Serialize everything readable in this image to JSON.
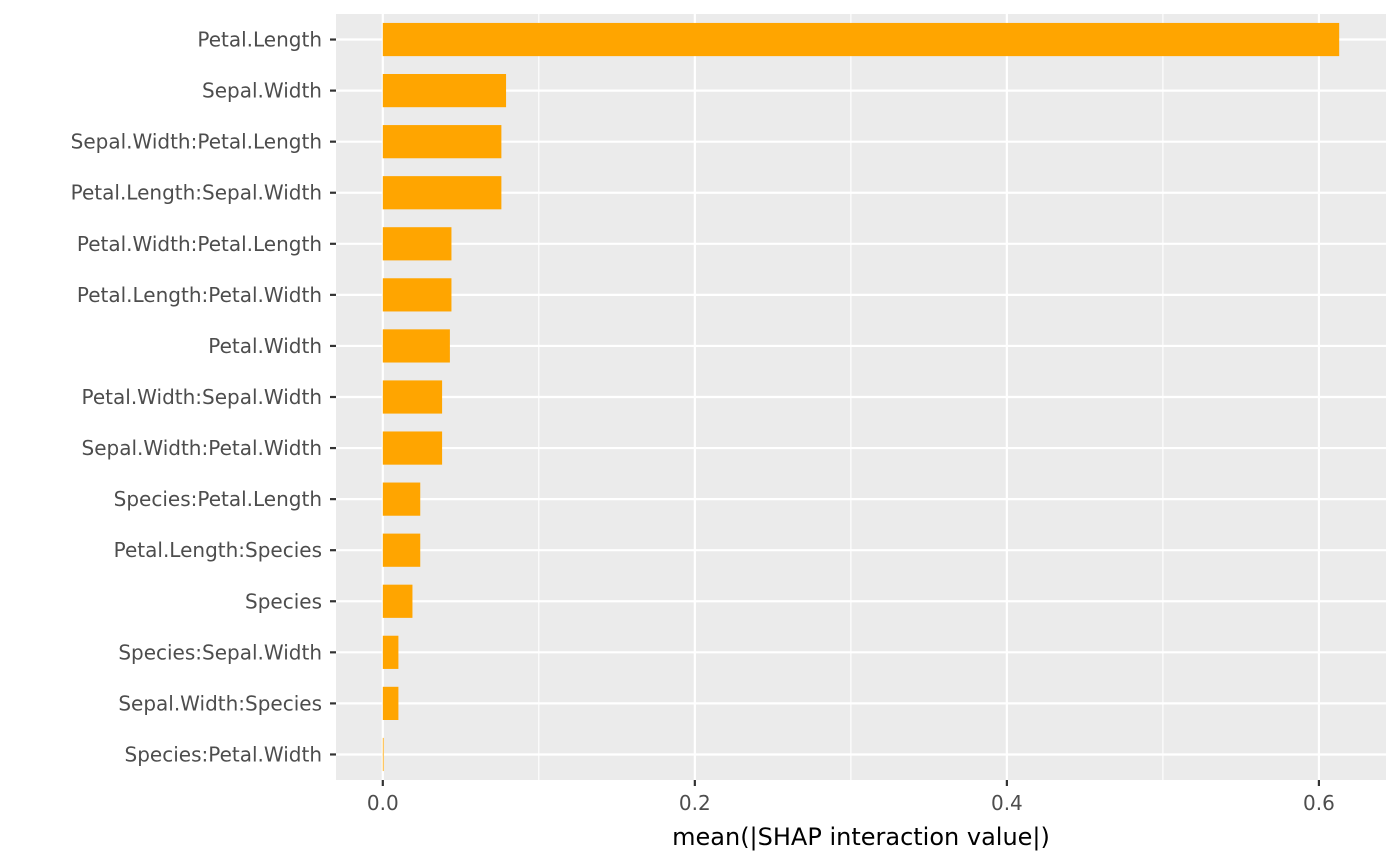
{
  "chart_data": {
    "type": "bar",
    "orientation": "horizontal",
    "categories": [
      "Petal.Length",
      "Sepal.Width",
      "Sepal.Width:Petal.Length",
      "Petal.Length:Sepal.Width",
      "Petal.Width:Petal.Length",
      "Petal.Length:Petal.Width",
      "Petal.Width",
      "Petal.Width:Sepal.Width",
      "Sepal.Width:Petal.Width",
      "Species:Petal.Length",
      "Petal.Length:Species",
      "Species",
      "Species:Sepal.Width",
      "Sepal.Width:Species",
      "Species:Petal.Width"
    ],
    "values": [
      0.613,
      0.079,
      0.076,
      0.076,
      0.044,
      0.044,
      0.043,
      0.038,
      0.038,
      0.024,
      0.024,
      0.019,
      0.01,
      0.01,
      0.0005
    ],
    "xlabel": "mean(|SHAP interaction value|)",
    "ylabel": "",
    "xlim": [
      -0.03,
      0.643
    ],
    "x_ticks": [
      0.0,
      0.2,
      0.4,
      0.6
    ],
    "x_tick_labels": [
      "0.0",
      "0.2",
      "0.4",
      "0.6"
    ],
    "grid": true,
    "legend": "none",
    "colors": {
      "bar": "#FFA500",
      "panel_background": "#EBEBEB",
      "grid": "#FFFFFF"
    }
  }
}
